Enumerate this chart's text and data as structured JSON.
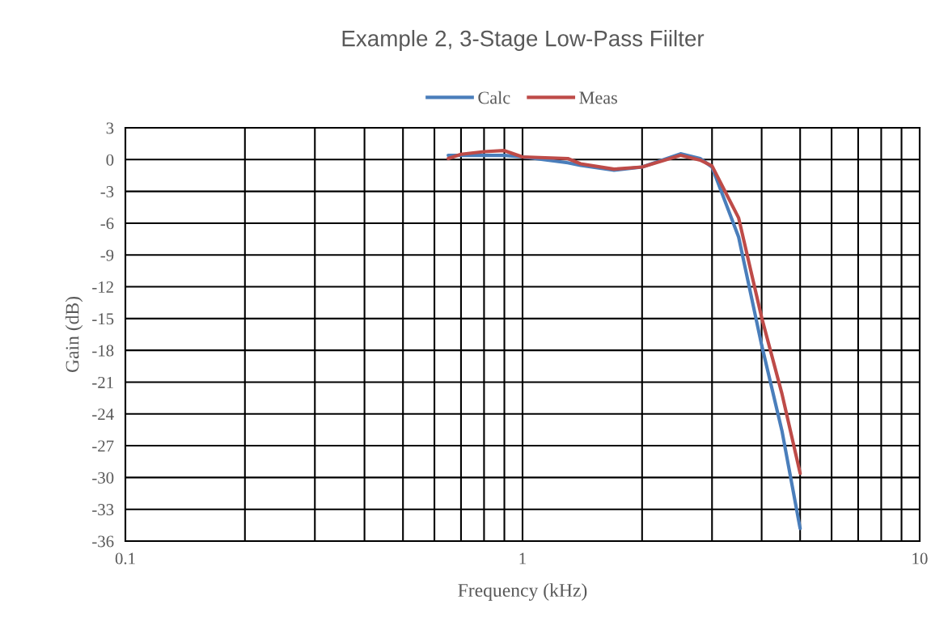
{
  "chart_data": {
    "type": "line",
    "title": "Example 2, 3-Stage Low-Pass Fiilter",
    "xlabel": "Frequency (kHz)",
    "ylabel": "Gain (dB)",
    "log": "x",
    "xlim": [
      0.1,
      10
    ],
    "ylim": [
      -36,
      3
    ],
    "xticks": [
      0.1,
      {
        "value": 0.2,
        "label": null
      },
      {
        "value": 0.3,
        "label": null
      },
      {
        "value": 0.4,
        "label": null
      },
      {
        "value": 0.5,
        "label": null
      },
      {
        "value": 0.6,
        "label": null
      },
      {
        "value": 0.7,
        "label": null
      },
      {
        "value": 0.8,
        "label": null
      },
      {
        "value": 0.9,
        "label": null
      },
      1,
      {
        "value": 2,
        "label": null
      },
      {
        "value": 3,
        "label": null
      },
      {
        "value": 4,
        "label": null
      },
      {
        "value": 5,
        "label": null
      },
      {
        "value": 6,
        "label": null
      },
      {
        "value": 7,
        "label": null
      },
      {
        "value": 8,
        "label": null
      },
      {
        "value": 9,
        "label": null
      },
      10
    ],
    "yticks": [
      3,
      0,
      -3,
      -6,
      -9,
      -12,
      -15,
      -18,
      -21,
      -24,
      -27,
      -30,
      -33,
      -36
    ],
    "grid": true,
    "legend": "top",
    "line_style": "solid",
    "series": [
      {
        "name": "Calc",
        "color": "#4a7ebb",
        "x": [
          0.65,
          0.7,
          0.8,
          0.9,
          1.0,
          1.3,
          1.4,
          1.7,
          2.0,
          2.5,
          2.8,
          3.0,
          3.5,
          4.0,
          4.5,
          5.0
        ],
        "values": [
          0.4,
          0.4,
          0.4,
          0.4,
          0.25,
          -0.3,
          -0.55,
          -1.0,
          -0.7,
          0.55,
          0.1,
          -0.7,
          -7.3,
          -17.5,
          -25.6,
          -34.8
        ]
      },
      {
        "name": "Meas",
        "color": "#be4b48",
        "x": [
          0.65,
          0.7,
          0.8,
          0.9,
          1.0,
          1.3,
          1.4,
          1.7,
          2.0,
          2.5,
          2.8,
          3.0,
          3.5,
          4.0,
          4.5,
          5.0
        ],
        "values": [
          0.1,
          0.5,
          0.75,
          0.85,
          0.25,
          0.1,
          -0.4,
          -0.9,
          -0.7,
          0.4,
          -0.05,
          -0.6,
          -5.5,
          -14.9,
          -22.1,
          -29.6
        ]
      }
    ]
  }
}
